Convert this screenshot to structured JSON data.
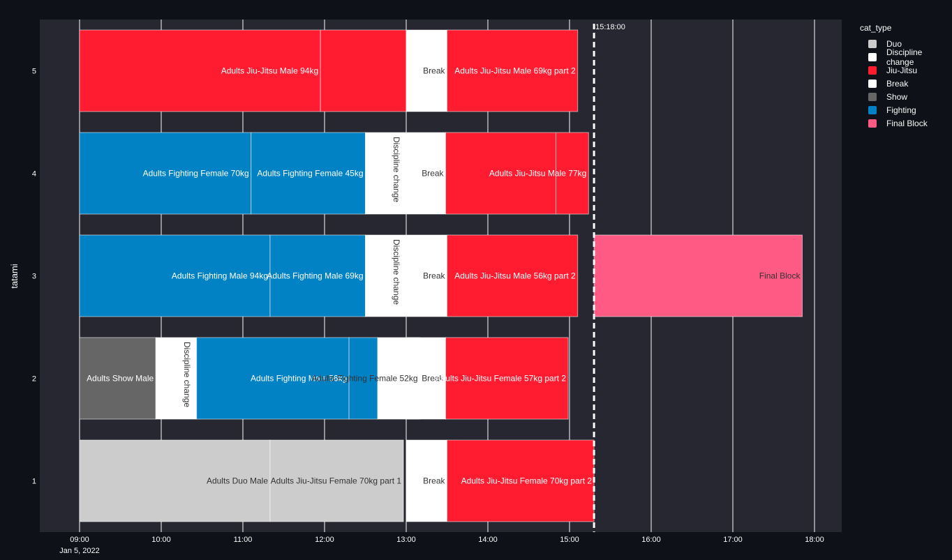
{
  "chart_data": {
    "type": "timeline",
    "date_label": "Jan 5, 2022",
    "ylabel": "tatami",
    "x_range": [
      "08:30",
      "18:20"
    ],
    "x_ticks": [
      "09:00",
      "10:00",
      "11:00",
      "12:00",
      "13:00",
      "14:00",
      "15:00",
      "16:00",
      "17:00",
      "18:00"
    ],
    "y_categories": [
      "1",
      "2",
      "3",
      "4",
      "5"
    ],
    "current_time": "15:18:00",
    "grid": true,
    "legend": {
      "title": "cat_type",
      "position": "right",
      "items": [
        {
          "name": "Duo",
          "color": "#cccccc"
        },
        {
          "name": "Discipline change",
          "color": "#ffffff"
        },
        {
          "name": "Jiu-Jitsu",
          "color": "#ff1c31"
        },
        {
          "name": "Break",
          "color": "#ffffff"
        },
        {
          "name": "Show",
          "color": "#666666"
        },
        {
          "name": "Fighting",
          "color": "#0082c4"
        },
        {
          "name": "Final Block",
          "color": "#ff5a84"
        }
      ]
    },
    "series": [
      {
        "tatami": "5",
        "start": "09:00",
        "end": "11:57",
        "type": "Jiu-Jitsu",
        "label": "Adults Jiu-Jitsu Male 94kg"
      },
      {
        "tatami": "5",
        "start": "11:57",
        "end": "13:00",
        "type": "Jiu-Jitsu",
        "label": ""
      },
      {
        "tatami": "5",
        "start": "13:00",
        "end": "13:30",
        "type": "Break",
        "label": "Break"
      },
      {
        "tatami": "5",
        "start": "13:30",
        "end": "15:06",
        "type": "Jiu-Jitsu",
        "label": "Adults Jiu-Jitsu Male 69kg part 2"
      },
      {
        "tatami": "4",
        "start": "09:00",
        "end": "11:06",
        "type": "Fighting",
        "label": "Adults Fighting Female 70kg"
      },
      {
        "tatami": "4",
        "start": "11:06",
        "end": "12:30",
        "type": "Fighting",
        "label": "Adults Fighting Female 45kg"
      },
      {
        "tatami": "4",
        "start": "12:30",
        "end": "13:00",
        "type": "Discipline change",
        "label": "Discipline change"
      },
      {
        "tatami": "4",
        "start": "13:00",
        "end": "13:29",
        "type": "Break",
        "label": "Break"
      },
      {
        "tatami": "4",
        "start": "13:29",
        "end": "14:50",
        "type": "Jiu-Jitsu",
        "label": ""
      },
      {
        "tatami": "4",
        "start": "14:50",
        "end": "15:14",
        "type": "Jiu-Jitsu",
        "label": "Adults Jiu-Jitsu Male 77kg"
      },
      {
        "tatami": "3",
        "start": "09:00",
        "end": "11:20",
        "type": "Fighting",
        "label": "Adults Fighting Male 94kg"
      },
      {
        "tatami": "3",
        "start": "11:20",
        "end": "12:30",
        "type": "Fighting",
        "label": "Adults Fighting Male 69kg"
      },
      {
        "tatami": "3",
        "start": "12:30",
        "end": "13:00",
        "type": "Discipline change",
        "label": "Discipline change"
      },
      {
        "tatami": "3",
        "start": "13:00",
        "end": "13:30",
        "type": "Break",
        "label": "Break"
      },
      {
        "tatami": "3",
        "start": "13:30",
        "end": "15:06",
        "type": "Jiu-Jitsu",
        "label": "Adults Jiu-Jitsu Male 56kg part 2"
      },
      {
        "tatami": "3",
        "start": "15:18",
        "end": "17:51",
        "type": "Final Block",
        "label": "Final Block"
      },
      {
        "tatami": "2",
        "start": "09:00",
        "end": "09:56",
        "type": "Show",
        "label": "Adults Show Male"
      },
      {
        "tatami": "2",
        "start": "09:56",
        "end": "10:26",
        "type": "Discipline change",
        "label": "Discipline change"
      },
      {
        "tatami": "2",
        "start": "10:26",
        "end": "12:18",
        "type": "Fighting",
        "label": "Adults Fighting Male 56kg"
      },
      {
        "tatami": "2",
        "start": "12:18",
        "end": "12:39",
        "type": "Fighting",
        "label": ""
      },
      {
        "tatami": "2",
        "start": "12:39",
        "end": "13:10",
        "type": "Discipline change",
        "label": "Adults Fighting Female 52kg"
      },
      {
        "tatami": "2",
        "start": "13:00",
        "end": "13:29",
        "type": "Break",
        "label": "Break"
      },
      {
        "tatami": "2",
        "start": "13:29",
        "end": "14:59",
        "type": "Jiu-Jitsu",
        "label": "Adults Jiu-Jitsu Female 57kg part 2"
      },
      {
        "tatami": "1",
        "start": "09:00",
        "end": "11:20",
        "type": "Duo",
        "label": "Adults Duo Male"
      },
      {
        "tatami": "1",
        "start": "11:20",
        "end": "12:58",
        "type": "Duo",
        "label": "Adults Jiu-Jitsu Female 70kg part 1"
      },
      {
        "tatami": "1",
        "start": "13:00",
        "end": "13:30",
        "type": "Break",
        "label": "Break"
      },
      {
        "tatami": "1",
        "start": "13:30",
        "end": "15:18",
        "type": "Jiu-Jitsu",
        "label": "Adults Jiu-Jitsu Female 70kg part 2"
      }
    ]
  }
}
